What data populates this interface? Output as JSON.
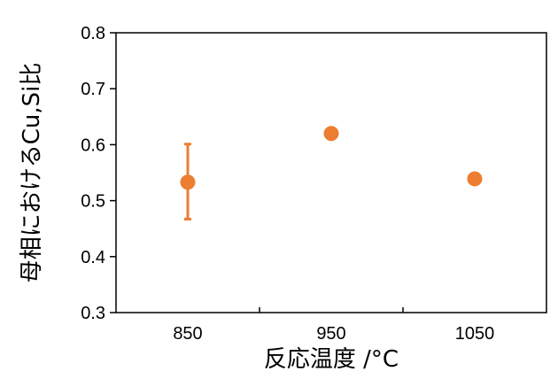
{
  "chart_data": {
    "type": "scatter",
    "title": "",
    "xlabel": "反応温度 /°C",
    "ylabel": "母相におけるCu,Si比",
    "x_categories": [
      "850",
      "950",
      "1050"
    ],
    "xlim": [
      800,
      1100
    ],
    "ylim": [
      0.3,
      0.8
    ],
    "y_ticks": [
      "0.3",
      "0.4",
      "0.5",
      "0.6",
      "0.7",
      "0.8"
    ],
    "grid": false,
    "legend": "none",
    "series": [
      {
        "color": "#ed7d31",
        "points": [
          {
            "x": 850,
            "y": 0.533,
            "err_low": 0.467,
            "err_high": 0.601
          },
          {
            "x": 950,
            "y": 0.62
          },
          {
            "x": 1050,
            "y": 0.539
          }
        ]
      }
    ]
  }
}
